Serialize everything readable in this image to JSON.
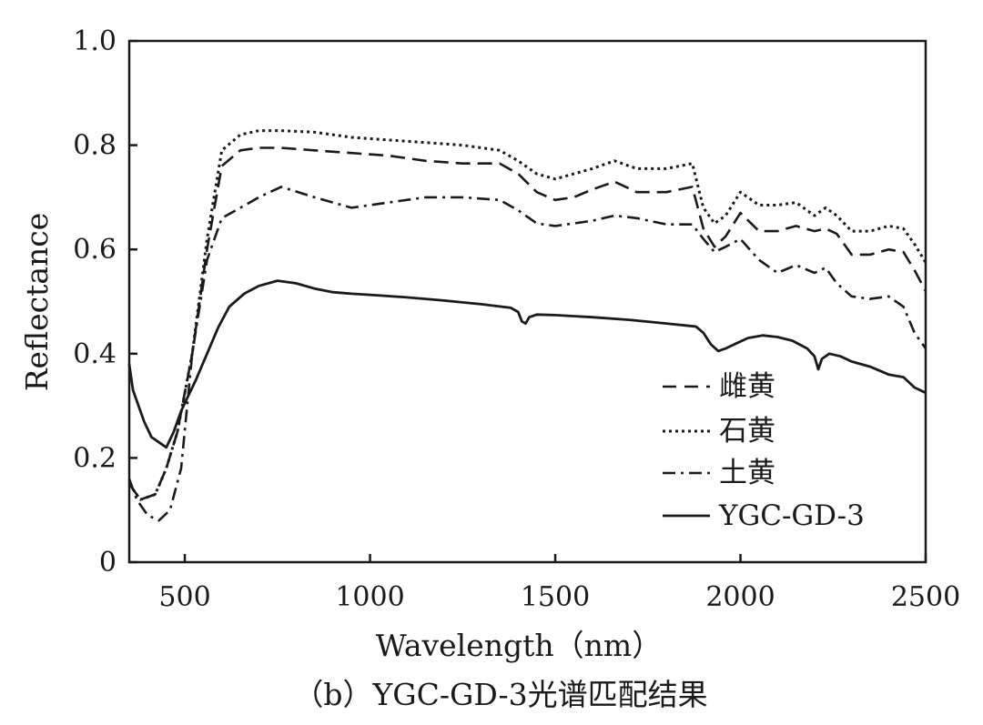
{
  "caption": "（b）YGC-GD-3光谱匹配结果",
  "chart_data": {
    "type": "line",
    "title": "",
    "xlabel": "Wavelength（nm）",
    "ylabel": "Reflectance",
    "xlim": [
      350,
      2500
    ],
    "ylim": [
      0,
      1.0
    ],
    "xticks": [
      500,
      1000,
      1500,
      2000,
      2500
    ],
    "xtick_labels": [
      "500",
      "1000",
      "1500",
      "2000",
      "2500"
    ],
    "yticks": [
      0,
      0.2,
      0.4,
      0.6,
      0.8,
      1.0
    ],
    "ytick_labels": [
      "0",
      "0.2",
      "0.4",
      "0.6",
      "0.8",
      "1.0"
    ],
    "legend_position": "bottom-right",
    "series": [
      {
        "name": "雌黄",
        "style": "dashed",
        "x": [
          350,
          380,
          420,
          450,
          480,
          520,
          560,
          600,
          650,
          700,
          760,
          850,
          950,
          1050,
          1150,
          1250,
          1350,
          1400,
          1450,
          1500,
          1550,
          1600,
          1660,
          1720,
          1800,
          1870,
          1900,
          1930,
          1960,
          2000,
          2050,
          2100,
          2150,
          2200,
          2230,
          2260,
          2300,
          2350,
          2400,
          2440,
          2470,
          2500
        ],
        "y": [
          0.15,
          0.12,
          0.13,
          0.18,
          0.25,
          0.4,
          0.6,
          0.76,
          0.79,
          0.795,
          0.795,
          0.79,
          0.785,
          0.78,
          0.77,
          0.765,
          0.765,
          0.745,
          0.71,
          0.695,
          0.7,
          0.715,
          0.73,
          0.71,
          0.71,
          0.72,
          0.64,
          0.605,
          0.625,
          0.67,
          0.635,
          0.635,
          0.645,
          0.635,
          0.64,
          0.63,
          0.59,
          0.59,
          0.6,
          0.595,
          0.56,
          0.52
        ]
      },
      {
        "name": "石黄",
        "style": "dotted",
        "x": [
          350,
          380,
          420,
          450,
          480,
          520,
          560,
          600,
          650,
          700,
          760,
          850,
          950,
          1050,
          1150,
          1250,
          1350,
          1400,
          1450,
          1500,
          1550,
          1600,
          1660,
          1720,
          1800,
          1870,
          1900,
          1930,
          1960,
          2000,
          2050,
          2100,
          2150,
          2200,
          2230,
          2260,
          2300,
          2350,
          2400,
          2440,
          2470,
          2500
        ],
        "y": [
          0.15,
          0.12,
          0.13,
          0.18,
          0.25,
          0.4,
          0.62,
          0.79,
          0.82,
          0.828,
          0.828,
          0.825,
          0.815,
          0.81,
          0.805,
          0.8,
          0.79,
          0.77,
          0.745,
          0.735,
          0.745,
          0.755,
          0.77,
          0.755,
          0.755,
          0.765,
          0.68,
          0.65,
          0.665,
          0.71,
          0.685,
          0.685,
          0.69,
          0.665,
          0.68,
          0.665,
          0.635,
          0.635,
          0.645,
          0.64,
          0.61,
          0.575
        ]
      },
      {
        "name": "土黄",
        "style": "dashdot",
        "x": [
          350,
          370,
          400,
          430,
          460,
          490,
          520,
          560,
          600,
          650,
          700,
          760,
          850,
          950,
          1050,
          1150,
          1250,
          1350,
          1400,
          1450,
          1500,
          1550,
          1600,
          1660,
          1720,
          1800,
          1870,
          1900,
          1930,
          1960,
          2000,
          2050,
          2100,
          2150,
          2200,
          2230,
          2260,
          2300,
          2350,
          2400,
          2440,
          2470,
          2500
        ],
        "y": [
          0.16,
          0.12,
          0.09,
          0.08,
          0.1,
          0.18,
          0.4,
          0.58,
          0.66,
          0.68,
          0.7,
          0.72,
          0.7,
          0.68,
          0.69,
          0.7,
          0.7,
          0.695,
          0.675,
          0.65,
          0.645,
          0.65,
          0.655,
          0.665,
          0.66,
          0.648,
          0.648,
          0.62,
          0.595,
          0.605,
          0.62,
          0.58,
          0.555,
          0.57,
          0.555,
          0.565,
          0.535,
          0.51,
          0.505,
          0.51,
          0.49,
          0.44,
          0.41
        ]
      },
      {
        "name": "YGC-GD-3",
        "style": "solid",
        "x": [
          350,
          360,
          375,
          390,
          410,
          430,
          450,
          470,
          490,
          510,
          530,
          560,
          590,
          620,
          660,
          700,
          750,
          800,
          850,
          900,
          950,
          1000,
          1100,
          1200,
          1300,
          1380,
          1400,
          1410,
          1420,
          1430,
          1450,
          1500,
          1600,
          1700,
          1800,
          1880,
          1900,
          1920,
          1940,
          1960,
          1990,
          2020,
          2060,
          2100,
          2140,
          2180,
          2200,
          2210,
          2220,
          2240,
          2270,
          2300,
          2350,
          2400,
          2440,
          2470,
          2500
        ],
        "y": [
          0.38,
          0.33,
          0.3,
          0.27,
          0.24,
          0.23,
          0.22,
          0.25,
          0.29,
          0.32,
          0.35,
          0.4,
          0.45,
          0.49,
          0.515,
          0.53,
          0.54,
          0.535,
          0.525,
          0.518,
          0.515,
          0.513,
          0.508,
          0.502,
          0.495,
          0.488,
          0.48,
          0.462,
          0.458,
          0.47,
          0.475,
          0.474,
          0.47,
          0.465,
          0.458,
          0.452,
          0.44,
          0.418,
          0.405,
          0.41,
          0.42,
          0.43,
          0.435,
          0.432,
          0.425,
          0.41,
          0.395,
          0.37,
          0.39,
          0.4,
          0.395,
          0.385,
          0.375,
          0.36,
          0.355,
          0.335,
          0.325
        ]
      }
    ]
  }
}
